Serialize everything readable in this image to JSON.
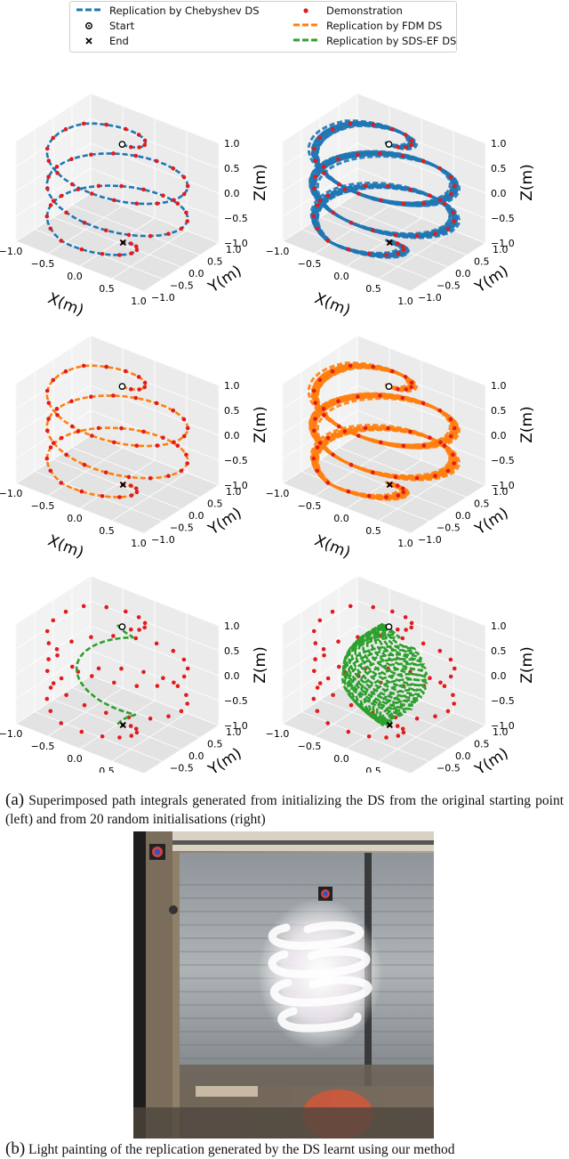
{
  "legend": {
    "chebyshev": "Replication by Chebyshev DS",
    "start": "Start",
    "end": "End",
    "demonstration": "Demonstration",
    "fdm": "Replication by FDM DS",
    "sdsef": "Replication by SDS-EF DS"
  },
  "colors": {
    "chebyshev": "#1f77b4",
    "fdm": "#ff7f0e",
    "sdsef": "#2ca02c",
    "demonstration": "#e41a1c",
    "pane": "#ebebeb"
  },
  "axes": {
    "xlabel": "X(m)",
    "ylabel": "Y(m)",
    "zlabel": "Z(m)",
    "x_ticks": [
      "−1.0",
      "−0.5",
      "0.0",
      "0.5",
      "1.0"
    ],
    "y_ticks": [
      "1.0",
      "0.5",
      "0.0",
      "−0.5",
      "−1.0"
    ],
    "z_ticks": [
      "1.0",
      "0.5",
      "0.0",
      "−0.5",
      "−1.0"
    ]
  },
  "chart_data": [
    {
      "type": "scatter",
      "method": "Chebyshev DS",
      "init": "original starting point",
      "series": [
        {
          "name": "Demonstration"
        },
        {
          "name": "Replication by Chebyshev DS"
        }
      ]
    },
    {
      "type": "scatter",
      "method": "Chebyshev DS",
      "init": "20 random initialisations",
      "series": [
        {
          "name": "Demonstration"
        },
        {
          "name": "Replication by Chebyshev DS"
        }
      ]
    },
    {
      "type": "scatter",
      "method": "FDM DS",
      "init": "original starting point",
      "series": [
        {
          "name": "Demonstration"
        },
        {
          "name": "Replication by FDM DS"
        }
      ]
    },
    {
      "type": "scatter",
      "method": "FDM DS",
      "init": "20 random initialisations",
      "series": [
        {
          "name": "Demonstration"
        },
        {
          "name": "Replication by FDM DS"
        }
      ]
    },
    {
      "type": "scatter",
      "method": "SDS-EF DS",
      "init": "original starting point",
      "series": [
        {
          "name": "Demonstration"
        },
        {
          "name": "Replication by SDS-EF DS"
        }
      ]
    },
    {
      "type": "scatter",
      "method": "SDS-EF DS",
      "init": "20 random initialisations",
      "series": [
        {
          "name": "Demonstration"
        },
        {
          "name": "Replication by SDS-EF DS"
        }
      ]
    }
  ],
  "caption_a": {
    "label": "(a)",
    "text": "Superimposed path integrals generated from initializing the DS from the original starting point (left) and from 20 random initialisations (right)"
  },
  "caption_b": {
    "label": "(b)",
    "text": "Light painting of the replication generated by the DS learnt using our method"
  }
}
